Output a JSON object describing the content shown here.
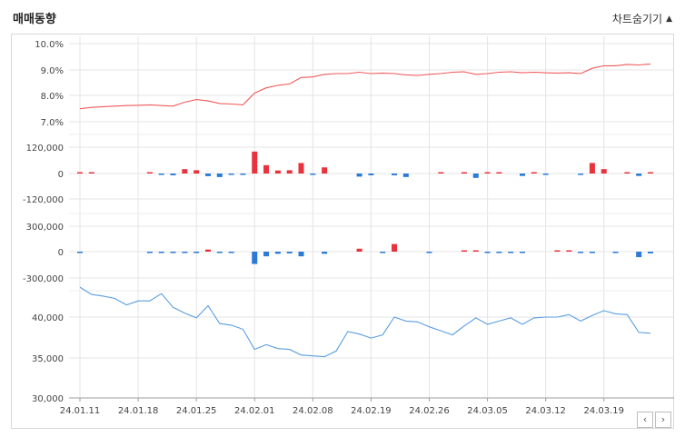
{
  "header": {
    "title": "매매동향",
    "toggle_label": "차트숨기기",
    "toggle_icon": "triangle-up-icon"
  },
  "nav": {
    "prev_icon": "chevron-left-icon",
    "next_icon": "chevron-right-icon",
    "prev_glyph": "‹",
    "next_glyph": "›"
  },
  "colors": {
    "up": "#e8323c",
    "down": "#2a7ad6",
    "price": "#5a9ee0",
    "ratio": "#f05a5a",
    "grid": "#e4e4e4"
  },
  "chart_data": [
    {
      "type": "line",
      "panel": "foreign-ratio",
      "yticks": [
        "10.0%",
        "9.0%",
        "8.0%",
        "7.0%"
      ],
      "ylim": [
        6.8,
        10.0
      ],
      "values": [
        7.5,
        7.55,
        7.58,
        7.6,
        7.62,
        7.63,
        7.65,
        7.62,
        7.6,
        7.75,
        7.85,
        7.8,
        7.7,
        7.68,
        7.65,
        8.1,
        8.3,
        8.4,
        8.45,
        8.7,
        8.72,
        8.82,
        8.85,
        8.85,
        8.9,
        8.85,
        8.87,
        8.85,
        8.8,
        8.78,
        8.82,
        8.85,
        8.9,
        8.92,
        8.82,
        8.85,
        8.9,
        8.92,
        8.88,
        8.9,
        8.88,
        8.87,
        8.88,
        8.85,
        9.05,
        9.15,
        9.15,
        9.2,
        9.18,
        9.22
      ]
    },
    {
      "type": "bar",
      "panel": "institution-net",
      "yticks": [
        "120,000",
        "0",
        "-120,000"
      ],
      "ylim": [
        -150000,
        150000
      ],
      "values": [
        2000,
        2000,
        0,
        0,
        0,
        0,
        2000,
        -4000,
        -8000,
        20000,
        15000,
        -12000,
        -16000,
        -3000,
        -4000,
        100000,
        38000,
        14000,
        15000,
        48000,
        -4000,
        28000,
        0,
        0,
        -14000,
        -8000,
        0,
        -8000,
        -16000,
        0,
        0,
        6000,
        0,
        4000,
        -20000,
        6000,
        6000,
        0,
        -11000,
        3000,
        -4000,
        0,
        0,
        -5000,
        48000,
        20000,
        0,
        4000,
        -11000,
        5000
      ]
    },
    {
      "type": "bar",
      "panel": "foreign-net",
      "yticks": [
        "300,000",
        "0",
        "-300,000"
      ],
      "ylim": [
        -330000,
        330000
      ],
      "values": [
        -12000,
        0,
        0,
        0,
        0,
        0,
        -4000,
        -10000,
        -12000,
        -10000,
        -12000,
        25000,
        -12000,
        -8000,
        0,
        -145000,
        -55000,
        -25000,
        -20000,
        -55000,
        0,
        -25000,
        0,
        0,
        35000,
        0,
        -3000,
        90000,
        0,
        0,
        -15000,
        0,
        0,
        12000,
        12000,
        -4000,
        -6000,
        -4000,
        -4000,
        0,
        0,
        4000,
        8000,
        -4000,
        -4000,
        0,
        -4000,
        0,
        -65000,
        -20000
      ]
    },
    {
      "type": "line",
      "panel": "price",
      "yticks": [
        "40,000",
        "35,000",
        "30,000"
      ],
      "ylim": [
        30000,
        44000
      ],
      "values": [
        43700,
        42800,
        42600,
        42300,
        41500,
        42000,
        42000,
        42900,
        41200,
        40500,
        39900,
        41400,
        39200,
        39000,
        38500,
        36000,
        36600,
        36100,
        36000,
        35300,
        35200,
        35100,
        35800,
        38200,
        37900,
        37400,
        37800,
        40000,
        39500,
        39400,
        38800,
        38300,
        37800,
        38900,
        39900,
        39100,
        39500,
        39900,
        39100,
        39900,
        40000,
        40000,
        40300,
        39500,
        40200,
        40800,
        40400,
        40300,
        38100,
        38000
      ]
    }
  ],
  "xaxis": {
    "labels": [
      "24.01.11",
      "24.01.18",
      "24.01.25",
      "24.02.01",
      "24.02.08",
      "24.02.19",
      "24.02.26",
      "24.03.05",
      "24.03.12",
      "24.03.19"
    ],
    "label_index": [
      0,
      5,
      10,
      15,
      20,
      25,
      30,
      35,
      40,
      45
    ]
  }
}
